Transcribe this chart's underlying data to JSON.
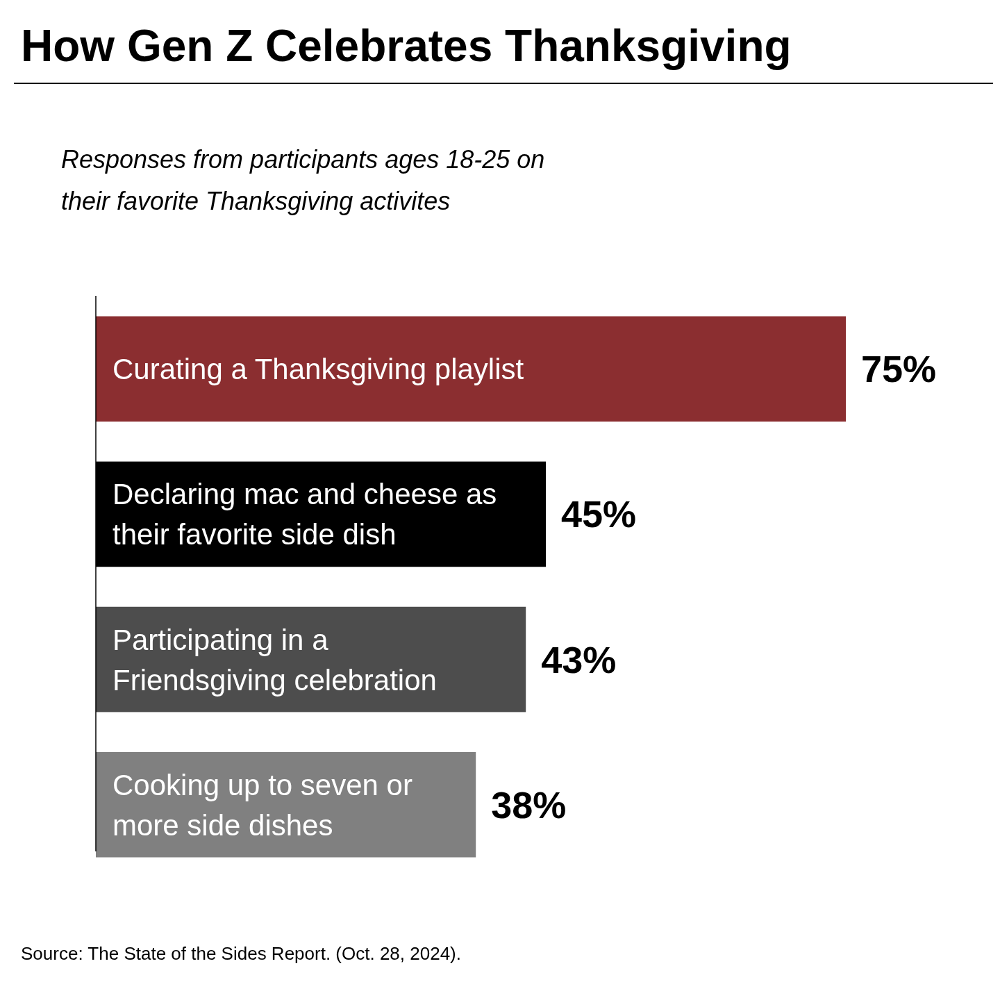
{
  "chart_data": {
    "type": "bar",
    "orientation": "horizontal",
    "title": "How Gen Z Celebrates Thanksgiving",
    "subtitle": "Responses from participants ages 18-25 on their favorite Thanksgiving activites",
    "categories": [
      "Curating a Thanksgiving playlist",
      "Declaring mac and cheese as their favorite side dish",
      "Participating in a Friendsgiving celebration",
      "Cooking up to seven or more side dishes"
    ],
    "values": [
      75,
      45,
      43,
      38
    ],
    "colors": [
      "#8b2e30",
      "#000000",
      "#4d4d4d",
      "#808080"
    ],
    "value_labels": [
      "75%",
      "45%",
      "43%",
      "38%"
    ],
    "annotations": [
      "Source: The State of the Sides Report. (Oct. 28, 2024)."
    ]
  }
}
